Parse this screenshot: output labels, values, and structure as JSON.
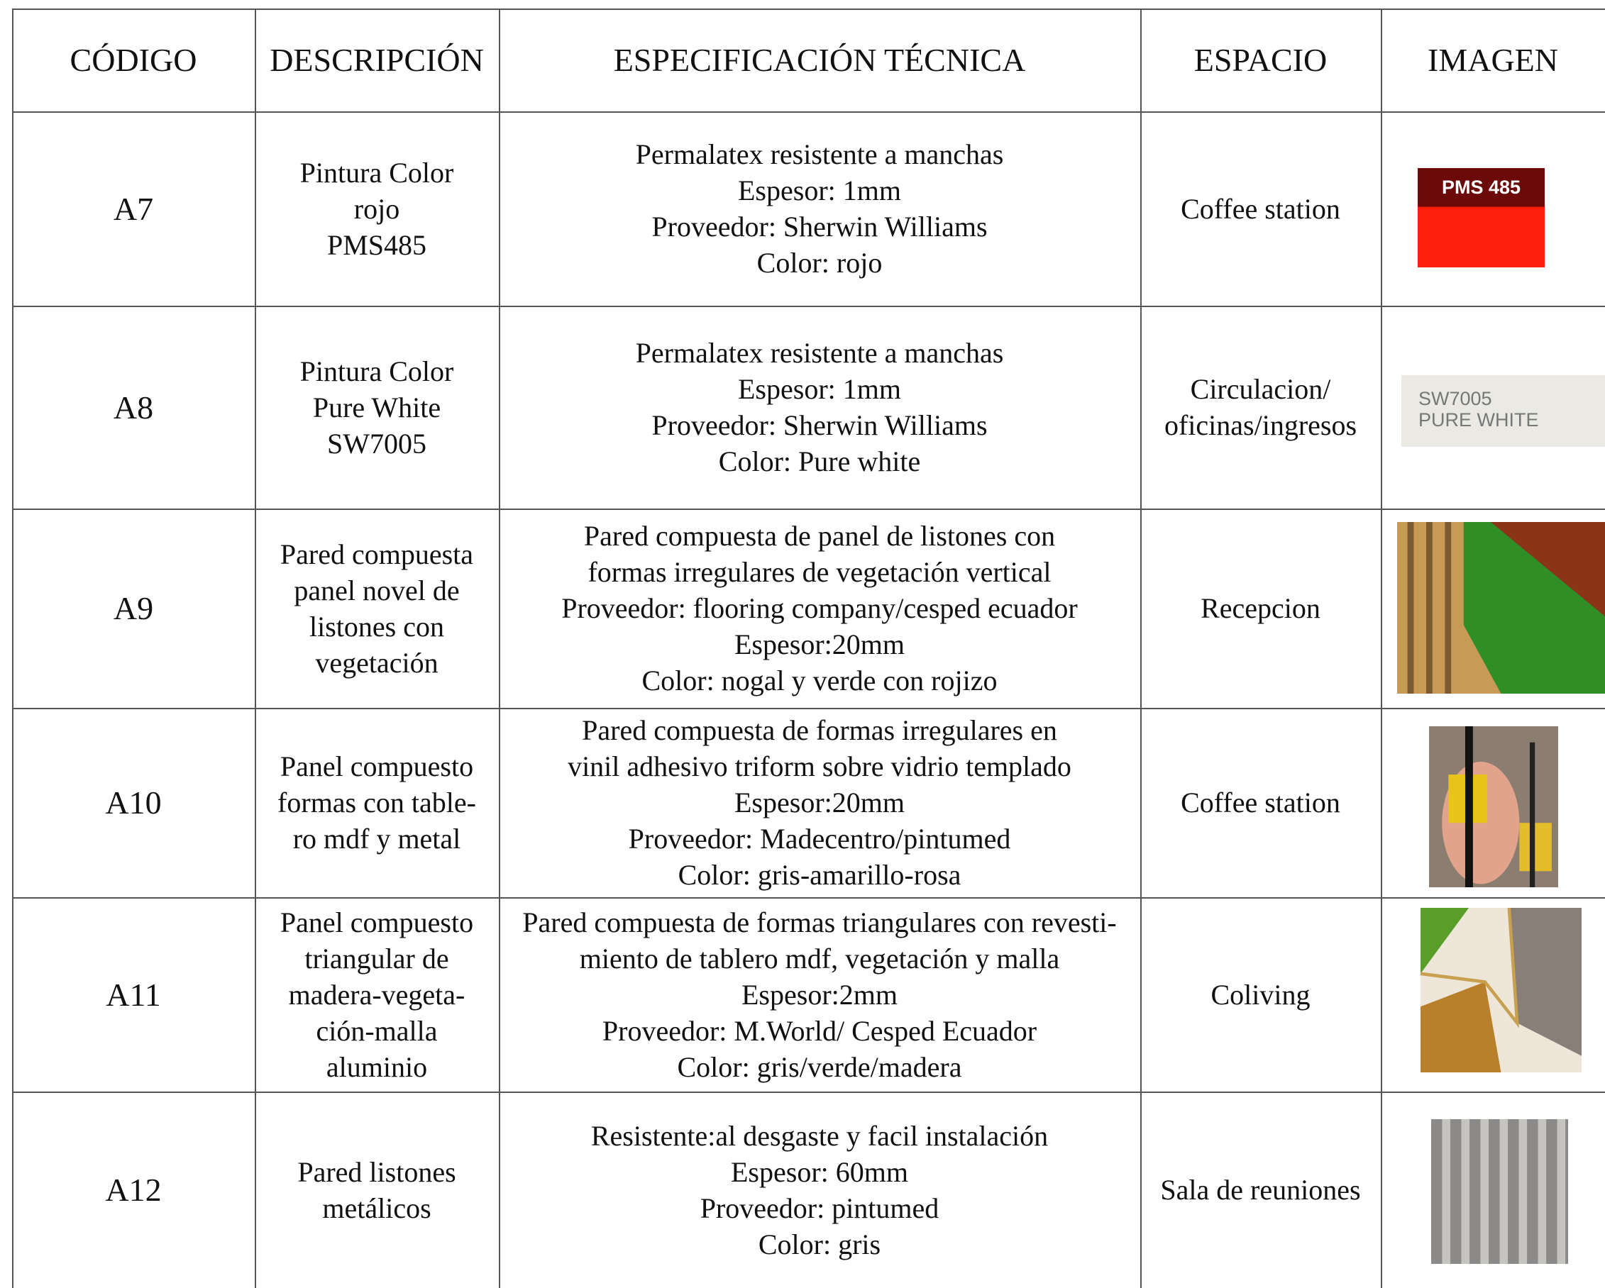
{
  "header": {
    "columns": [
      "CÓDIGO",
      "DESCRIPCIÓN",
      "ESPECIFICACIÓN TÉCNICA",
      "ESPACIO",
      "IMAGEN"
    ]
  },
  "rows": [
    {
      "code": "A7",
      "description": [
        "Pintura Color",
        "rojo",
        "PMS485"
      ],
      "specification": [
        "Permalatex resistente a manchas",
        "Espesor: 1mm",
        "Proveedor: Sherwin Williams",
        "Color: rojo"
      ],
      "space": [
        "Coffee station"
      ],
      "image_label": [
        "PMS 485"
      ]
    },
    {
      "code": "A8",
      "description": [
        "Pintura Color",
        "Pure White",
        "SW7005"
      ],
      "specification": [
        "Permalatex resistente a manchas",
        "Espesor: 1mm",
        "Proveedor: Sherwin Williams",
        "Color: Pure white"
      ],
      "space": [
        "Circulacion/",
        "oficinas/ingresos"
      ],
      "image_label": [
        "SW7005",
        "PURE WHITE"
      ]
    },
    {
      "code": "A9",
      "description": [
        "Pared compuesta",
        "panel novel de",
        "listones con",
        "vegetación"
      ],
      "specification": [
        "Pared compuesta de panel de listones con",
        "formas irregulares de vegetación vertical",
        "Proveedor: flooring company/cesped ecuador",
        "Espesor:20mm",
        "Color: nogal y verde con rojizo"
      ],
      "space": [
        "Recepcion"
      ]
    },
    {
      "code": "A10",
      "description": [
        "Panel compuesto",
        "formas con table-",
        "ro mdf y metal"
      ],
      "specification": [
        "Pared compuesta de formas irregulares en",
        "vinil adhesivo triform sobre vidrio templado",
        "Espesor:20mm",
        "Proveedor: Madecentro/pintumed",
        "Color: gris-amarillo-rosa"
      ],
      "space": [
        "Coffee station"
      ]
    },
    {
      "code": "A11",
      "description": [
        "Panel compuesto",
        "triangular de",
        "madera-vegeta-",
        "ción-malla",
        "aluminio"
      ],
      "specification": [
        "Pared compuesta de formas triangulares con revesti-",
        "miento de tablero mdf, vegetación y malla",
        "Espesor:2mm",
        "Proveedor: M.World/ Cesped Ecuador",
        "Color: gris/verde/madera"
      ],
      "space": [
        "Coliving"
      ]
    },
    {
      "code": "A12",
      "description": [
        "Pared listones",
        "metálicos"
      ],
      "specification": [
        "Resistente:al desgaste y facil instalación",
        "Espesor: 60mm",
        "Proveedor: pintumed",
        "Color: gris"
      ],
      "space": [
        "Sala de reuniones"
      ]
    }
  ]
}
